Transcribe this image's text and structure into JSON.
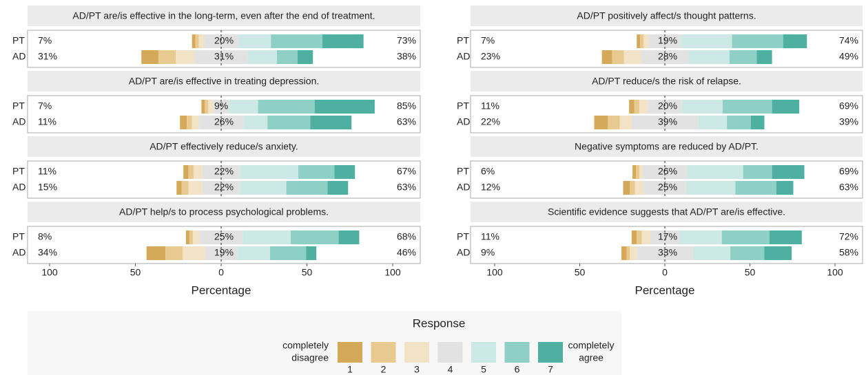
{
  "chart_data": [
    {
      "type": "diverging_bar",
      "xlabel": "Percentage",
      "xlim": [
        -100,
        100
      ],
      "xticks": [
        {
          "value": -100,
          "label": "100"
        },
        {
          "value": -50,
          "label": "50"
        },
        0,
        50,
        100
      ],
      "panels": [
        {
          "title": "AD/PT are/is effective in the long-term, even after the end of treatment.",
          "rows": [
            {
              "name": "PT",
              "values": [
                2,
                2,
                3,
                20,
                19,
                30,
                24
              ],
              "labels": [
                "7%",
                "20%",
                "73%"
              ]
            },
            {
              "name": "AD",
              "values": [
                10,
                10,
                11,
                31,
                17,
                12,
                9
              ],
              "labels": [
                "31%",
                "31%",
                "38%"
              ]
            }
          ]
        },
        {
          "title": "AD/PT are/is effective in treating depression.",
          "rows": [
            {
              "name": "PT",
              "values": [
                2,
                2,
                3,
                9,
                17,
                33,
                35
              ],
              "labels": [
                "7%",
                "9%",
                "85%"
              ]
            },
            {
              "name": "AD",
              "values": [
                4,
                3,
                4,
                26,
                14,
                25,
                24
              ],
              "labels": [
                "11%",
                "26%",
                "63%"
              ]
            }
          ]
        },
        {
          "title": "AD/PT effectively reduce/s anxiety.",
          "rows": [
            {
              "name": "PT",
              "values": [
                3,
                3,
                5,
                22,
                34,
                21,
                12
              ],
              "labels": [
                "11%",
                "22%",
                "67%"
              ]
            },
            {
              "name": "AD",
              "values": [
                3,
                4,
                8,
                22,
                27,
                24,
                12
              ],
              "labels": [
                "15%",
                "22%",
                "63%"
              ]
            }
          ]
        },
        {
          "title": "AD/PT help/s to process psychological problems.",
          "rows": [
            {
              "name": "PT",
              "values": [
                2,
                2,
                4,
                25,
                28,
                28,
                12
              ],
              "labels": [
                "8%",
                "25%",
                "68%"
              ]
            },
            {
              "name": "AD",
              "values": [
                11,
                10,
                13,
                19,
                19,
                21,
                6
              ],
              "labels": [
                "34%",
                "19%",
                "46%"
              ]
            }
          ]
        }
      ]
    },
    {
      "type": "diverging_bar",
      "xlabel": "Percentage",
      "xlim": [
        -100,
        100
      ],
      "xticks": [
        {
          "value": -100,
          "label": "100"
        },
        {
          "value": -50,
          "label": "50"
        },
        0,
        50,
        100
      ],
      "panels": [
        {
          "title": "AD/PT positively affect/s thought patterns.",
          "rows": [
            {
              "name": "PT",
              "values": [
                2,
                2,
                3,
                19,
                30,
                30,
                14
              ],
              "labels": [
                "7%",
                "19%",
                "74%"
              ]
            },
            {
              "name": "AD",
              "values": [
                6,
                7,
                10,
                28,
                24,
                16,
                9
              ],
              "labels": [
                "23%",
                "28%",
                "49%"
              ]
            }
          ]
        },
        {
          "title": "AD/PT reduce/s the risk of relapse.",
          "rows": [
            {
              "name": "PT",
              "values": [
                3,
                3,
                5,
                20,
                24,
                29,
                16
              ],
              "labels": [
                "11%",
                "20%",
                "69%"
              ]
            },
            {
              "name": "AD",
              "values": [
                8,
                7,
                7,
                39,
                17,
                14,
                8
              ],
              "labels": [
                "22%",
                "39%",
                "39%"
              ]
            }
          ]
        },
        {
          "title": "Negative symptoms are reduced by AD/PT.",
          "rows": [
            {
              "name": "PT",
              "values": [
                2,
                2,
                2,
                26,
                33,
                17,
                19
              ],
              "labels": [
                "6%",
                "26%",
                "69%"
              ]
            },
            {
              "name": "AD",
              "values": [
                4,
                3,
                5,
                25,
                29,
                24,
                10
              ],
              "labels": [
                "12%",
                "25%",
                "63%"
              ]
            }
          ]
        },
        {
          "title": "Scientific evidence suggests that AD/PT are/is effective.",
          "rows": [
            {
              "name": "PT",
              "values": [
                3,
                3,
                5,
                17,
                25,
                28,
                19
              ],
              "labels": [
                "11%",
                "17%",
                "72%"
              ]
            },
            {
              "name": "AD",
              "values": [
                3,
                2,
                4,
                33,
                22,
                20,
                16
              ],
              "labels": [
                "9%",
                "33%",
                "58%"
              ]
            }
          ]
        }
      ]
    }
  ],
  "legend": {
    "title": "Response",
    "levels": [
      "1",
      "2",
      "3",
      "4",
      "5",
      "6",
      "7"
    ],
    "colors": [
      "#d4aa5a",
      "#e8c990",
      "#f3e3c6",
      "#e2e2e2",
      "#cde9e6",
      "#8ecfc6",
      "#4fb0a2"
    ],
    "low_label": [
      "completely",
      "disagree"
    ],
    "high_label": [
      "completely",
      "agree"
    ]
  }
}
